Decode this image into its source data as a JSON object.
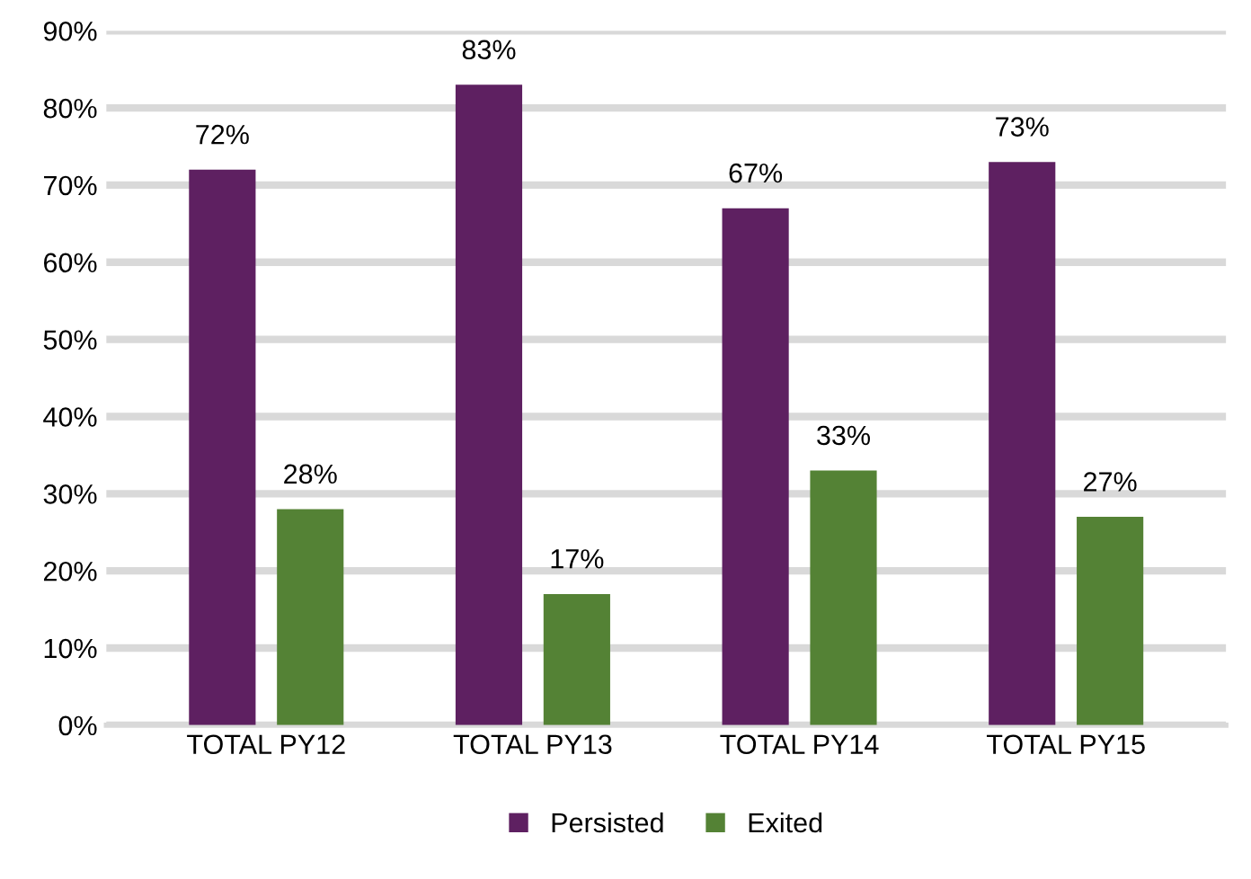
{
  "chart_data": {
    "type": "bar",
    "categories": [
      "TOTAL PY12",
      "TOTAL PY13",
      "TOTAL PY14",
      "TOTAL PY15"
    ],
    "series": [
      {
        "name": "Persisted",
        "color": "#5e2061",
        "values": [
          72,
          83,
          67,
          73
        ],
        "value_labels": [
          "72%",
          "83%",
          "67%",
          "73%"
        ]
      },
      {
        "name": "Exited",
        "color": "#548235",
        "values": [
          28,
          17,
          33,
          27
        ],
        "value_labels": [
          "28%",
          "17%",
          "33%",
          "27%"
        ]
      }
    ],
    "ylim": [
      0,
      90
    ],
    "yticks": [
      {
        "value": 0,
        "label": "0%"
      },
      {
        "value": 10,
        "label": "10%"
      },
      {
        "value": 20,
        "label": "20%"
      },
      {
        "value": 30,
        "label": "30%"
      },
      {
        "value": 40,
        "label": "40%"
      },
      {
        "value": 50,
        "label": "50%"
      },
      {
        "value": 60,
        "label": "60%"
      },
      {
        "value": 70,
        "label": "70%"
      },
      {
        "value": 80,
        "label": "80%"
      },
      {
        "value": 90,
        "label": "90%"
      }
    ],
    "grid": "y",
    "legend": "bottom"
  }
}
